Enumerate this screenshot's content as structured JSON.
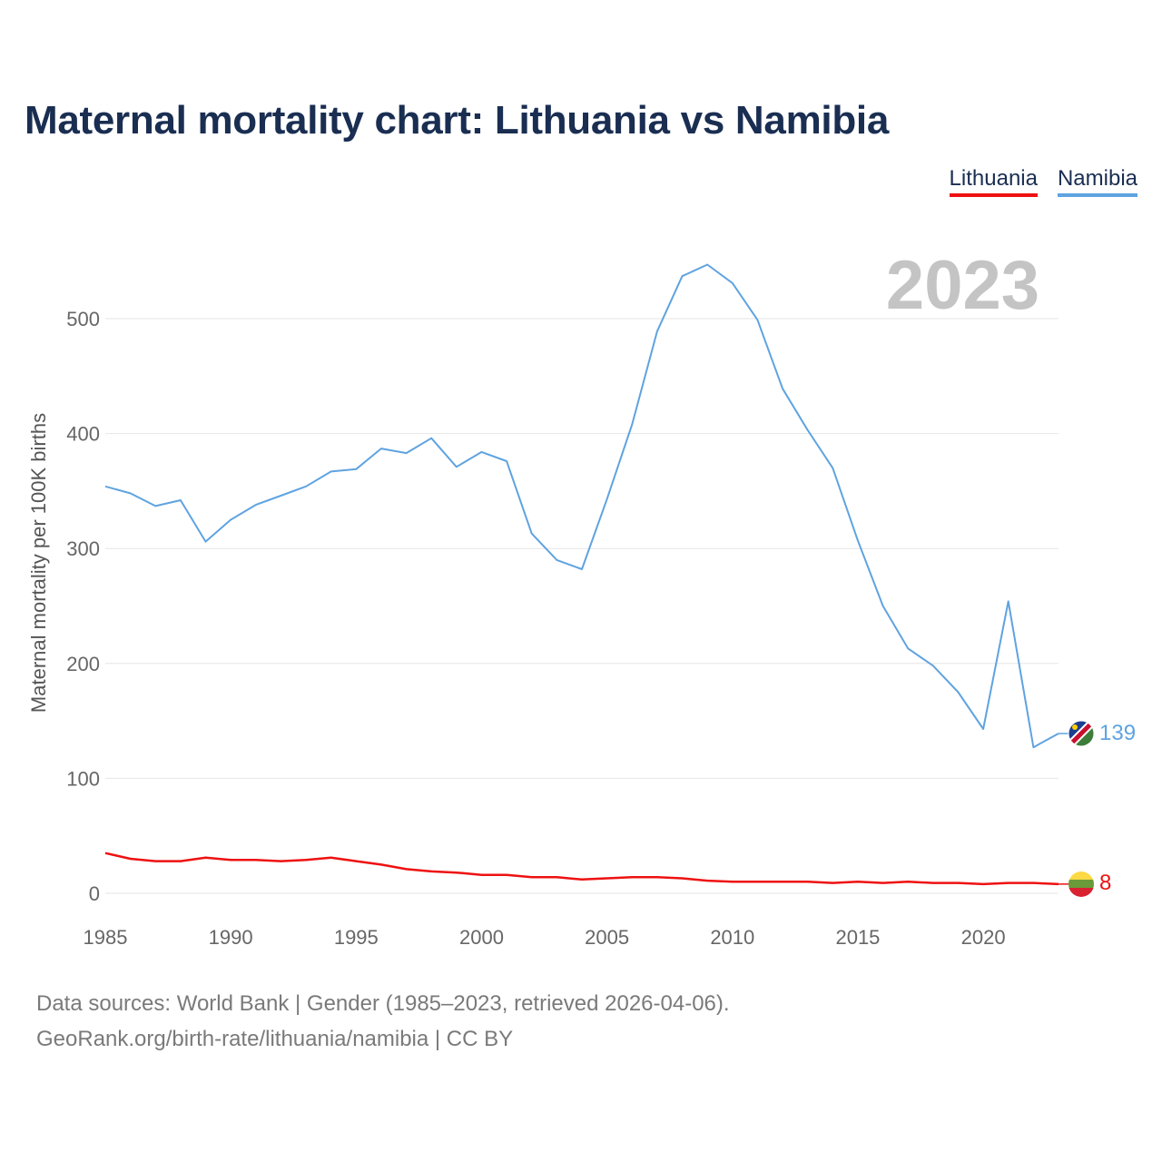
{
  "header": {
    "title": "Maternal mortality chart: Lithuania vs Namibia"
  },
  "legend": {
    "items": [
      {
        "label": "Lithuania",
        "color": "#ee1111"
      },
      {
        "label": "Namibia",
        "color": "#5fa3e0"
      }
    ]
  },
  "year_watermark": "2023",
  "footer": {
    "sources": "Data sources: World Bank | Gender (1985–2023, retrieved 2026-04-06).",
    "link": "GeoRank.org/birth-rate/lithuania/namibia | CC BY"
  },
  "chart_data": {
    "type": "line",
    "title": "Maternal mortality chart: Lithuania vs Namibia",
    "xlabel": "",
    "ylabel": "Maternal mortality per 100K births",
    "xlim": [
      1985,
      2023
    ],
    "ylim": [
      0,
      550
    ],
    "xticks": [
      1985,
      1990,
      1995,
      2000,
      2005,
      2010,
      2015,
      2020
    ],
    "yticks": [
      0,
      100,
      200,
      300,
      400,
      500
    ],
    "grid": true,
    "x": [
      1985,
      1986,
      1987,
      1988,
      1989,
      1990,
      1991,
      1992,
      1993,
      1994,
      1995,
      1996,
      1997,
      1998,
      1999,
      2000,
      2001,
      2002,
      2003,
      2004,
      2005,
      2006,
      2007,
      2008,
      2009,
      2010,
      2011,
      2012,
      2013,
      2014,
      2015,
      2016,
      2017,
      2018,
      2019,
      2020,
      2021,
      2022,
      2023
    ],
    "series": [
      {
        "name": "Namibia",
        "color": "#5fa3e0",
        "end_label": "139",
        "values": [
          354,
          348,
          337,
          342,
          306,
          325,
          338,
          346,
          354,
          367,
          369,
          387,
          383,
          396,
          371,
          384,
          376,
          313,
          290,
          282,
          343,
          408,
          489,
          537,
          547,
          531,
          499,
          439,
          403,
          370,
          307,
          250,
          213,
          198,
          175,
          143,
          254,
          127,
          139
        ]
      },
      {
        "name": "Lithuania",
        "color": "#ee1111",
        "end_label": "8",
        "values": [
          35,
          30,
          28,
          28,
          31,
          29,
          29,
          28,
          29,
          31,
          28,
          25,
          21,
          19,
          18,
          16,
          16,
          14,
          14,
          12,
          13,
          14,
          14,
          13,
          11,
          10,
          10,
          10,
          10,
          9,
          10,
          9,
          10,
          9,
          9,
          8,
          9,
          9,
          8
        ]
      }
    ]
  }
}
